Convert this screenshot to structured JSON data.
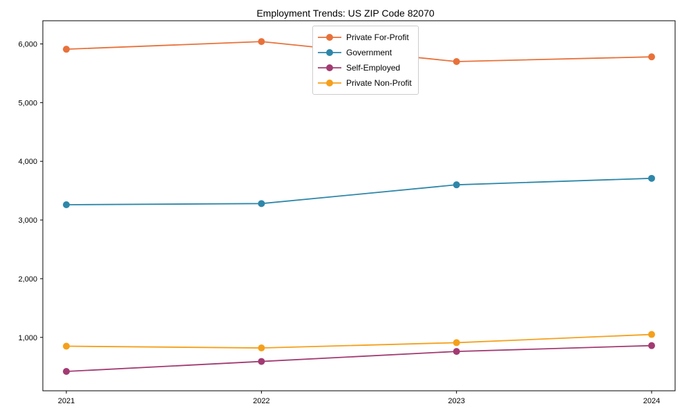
{
  "chart_data": {
    "type": "line",
    "title": "Employment Trends: US ZIP Code 82070",
    "categories": [
      "2021",
      "2022",
      "2023",
      "2024"
    ],
    "series": [
      {
        "name": "Private For-Profit",
        "color": "#e8713a",
        "values": [
          5910,
          6040,
          5700,
          5780
        ]
      },
      {
        "name": "Government",
        "color": "#2e87a9",
        "values": [
          3260,
          3280,
          3600,
          3710
        ]
      },
      {
        "name": "Self-Employed",
        "color": "#a23b72",
        "values": [
          420,
          590,
          760,
          860
        ]
      },
      {
        "name": "Private Non-Profit",
        "color": "#f5a01b",
        "values": [
          850,
          820,
          910,
          1050
        ]
      }
    ],
    "ylim": [
      90,
      6395
    ],
    "yticks": [
      1000,
      2000,
      3000,
      4000,
      5000,
      6000
    ],
    "ytick_labels": [
      "1,000",
      "2,000",
      "3,000",
      "4,000",
      "5,000",
      "6,000"
    ],
    "xlabel": "",
    "ylabel": "",
    "grid": false,
    "legend_position": "top-center",
    "axis_color": "#000000",
    "tick_label_color": "#000000"
  }
}
